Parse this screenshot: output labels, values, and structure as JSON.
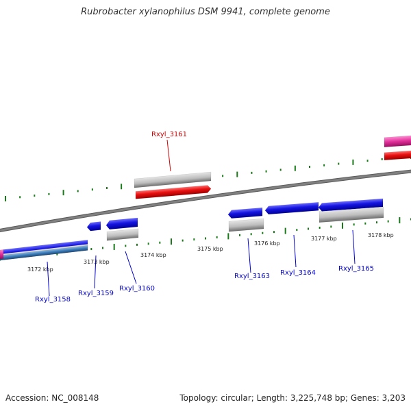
{
  "title": "Rubrobacter xylanophilus DSM 9941, complete genome",
  "footer": {
    "accession": "Accession: NC_008148",
    "stats": "Topology: circular; Length: 3,225,748 bp; Genes: 3,203"
  },
  "tick_labels": [
    "3172 kbp",
    "3173 kbp",
    "3174 kbp",
    "3175 kbp",
    "3176 kbp",
    "3177 kbp",
    "3178 kbp"
  ],
  "gene_labels": [
    "Rxyl_3161",
    "Rxyl_3158",
    "Rxyl_3159",
    "Rxyl_3160",
    "Rxyl_3163",
    "Rxyl_3164",
    "Rxyl_3165"
  ],
  "colors": {
    "backbone": "#808080",
    "tick": "#1a7a1a",
    "cds_forward": "#e01010",
    "cds_reverse": "#1818d8",
    "gene_feature": "#b8b8b8",
    "rna": "#3a7ab8",
    "pseudo": "#e0309a",
    "label_forward": "#cc0000",
    "label_reverse": "#0000cc"
  }
}
